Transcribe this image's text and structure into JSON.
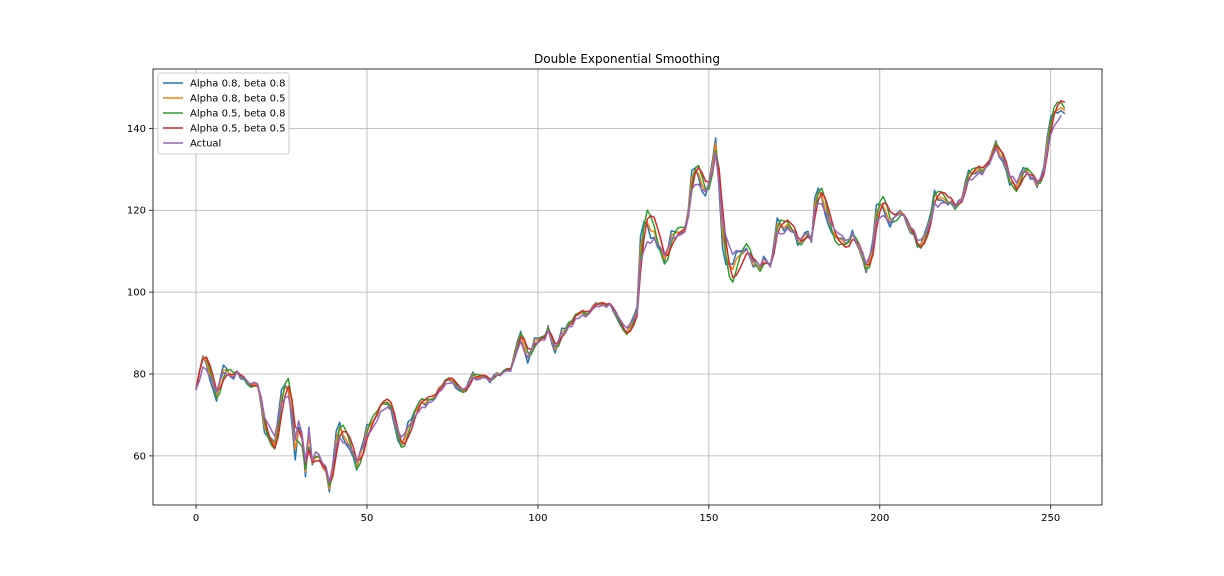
{
  "chart_data": {
    "type": "line",
    "title": "Double Exponential Smoothing",
    "xlabel": "",
    "ylabel": "",
    "xlim": [
      -12.6,
      265
    ],
    "ylim": [
      48,
      154.5
    ],
    "xticks": [
      0,
      50,
      100,
      150,
      200,
      250
    ],
    "yticks": [
      60,
      80,
      100,
      120,
      140
    ],
    "grid": true,
    "legend_position": "upper-left",
    "anchors": [
      [
        0,
        76
      ],
      [
        2,
        81.5
      ],
      [
        4,
        79
      ],
      [
        6,
        76
      ],
      [
        8,
        80
      ],
      [
        10,
        79
      ],
      [
        12,
        80
      ],
      [
        14,
        79
      ],
      [
        16,
        78
      ],
      [
        18,
        77
      ],
      [
        20,
        70
      ],
      [
        22,
        66
      ],
      [
        23,
        65
      ],
      [
        25,
        73
      ],
      [
        27,
        74
      ],
      [
        28,
        70
      ],
      [
        29,
        64
      ],
      [
        30,
        68
      ],
      [
        31,
        66
      ],
      [
        32,
        59
      ],
      [
        33,
        67
      ],
      [
        34,
        59
      ],
      [
        35,
        61
      ],
      [
        36,
        59.5
      ],
      [
        38,
        57
      ],
      [
        39,
        54
      ],
      [
        41,
        62
      ],
      [
        42,
        64
      ],
      [
        44,
        63
      ],
      [
        46,
        60.5
      ],
      [
        47,
        59
      ],
      [
        49,
        63
      ],
      [
        50,
        65
      ],
      [
        52,
        67
      ],
      [
        54,
        71
      ],
      [
        56,
        72
      ],
      [
        58,
        69
      ],
      [
        60,
        65
      ],
      [
        62,
        67
      ],
      [
        64,
        70
      ],
      [
        66,
        72
      ],
      [
        68,
        72.5
      ],
      [
        70,
        74
      ],
      [
        72,
        76
      ],
      [
        74,
        78.5
      ],
      [
        76,
        77
      ],
      [
        78,
        76
      ],
      [
        80,
        78
      ],
      [
        82,
        79
      ],
      [
        84,
        78.5
      ],
      [
        86,
        79
      ],
      [
        88,
        79.5
      ],
      [
        90,
        80
      ],
      [
        92,
        81
      ],
      [
        94,
        85
      ],
      [
        95,
        88
      ],
      [
        97,
        84
      ],
      [
        99,
        87
      ],
      [
        101,
        88
      ],
      [
        103,
        90
      ],
      [
        105,
        87
      ],
      [
        107,
        89.5
      ],
      [
        109,
        91
      ],
      [
        111,
        93
      ],
      [
        113,
        94.5
      ],
      [
        115,
        95
      ],
      [
        117,
        96
      ],
      [
        119,
        96
      ],
      [
        121,
        96.5
      ],
      [
        123,
        95.5
      ],
      [
        125,
        92
      ],
      [
        126,
        91
      ],
      [
        128,
        93
      ],
      [
        129,
        95
      ],
      [
        130,
        107
      ],
      [
        132,
        112
      ],
      [
        134,
        113
      ],
      [
        135,
        112
      ],
      [
        137,
        109
      ],
      [
        139,
        113
      ],
      [
        141,
        114
      ],
      [
        143,
        115
      ],
      [
        144,
        119
      ],
      [
        145,
        125
      ],
      [
        147,
        126
      ],
      [
        149,
        124
      ],
      [
        150,
        126
      ],
      [
        151,
        130
      ],
      [
        152,
        134
      ],
      [
        153,
        126
      ],
      [
        154,
        118
      ],
      [
        155,
        113
      ],
      [
        157,
        110
      ],
      [
        159,
        110
      ],
      [
        161,
        111
      ],
      [
        163,
        108
      ],
      [
        165,
        106
      ],
      [
        166,
        108
      ],
      [
        168,
        107
      ],
      [
        170,
        114
      ],
      [
        172,
        115
      ],
      [
        174,
        115
      ],
      [
        176,
        113
      ],
      [
        178,
        114
      ],
      [
        180,
        113
      ],
      [
        181,
        120
      ],
      [
        182,
        122
      ],
      [
        184,
        120
      ],
      [
        186,
        116
      ],
      [
        188,
        114
      ],
      [
        190,
        113
      ],
      [
        192,
        114
      ],
      [
        194,
        112
      ],
      [
        196,
        107
      ],
      [
        198,
        111
      ],
      [
        199,
        117
      ],
      [
        201,
        119
      ],
      [
        203,
        117
      ],
      [
        205,
        119
      ],
      [
        207,
        118
      ],
      [
        209,
        116
      ],
      [
        211,
        113
      ],
      [
        213,
        114
      ],
      [
        215,
        117
      ],
      [
        216,
        121
      ],
      [
        218,
        122
      ],
      [
        220,
        122
      ],
      [
        222,
        121
      ],
      [
        224,
        122
      ],
      [
        226,
        127
      ],
      [
        228,
        128
      ],
      [
        230,
        129
      ],
      [
        232,
        131
      ],
      [
        234,
        135
      ],
      [
        236,
        132
      ],
      [
        238,
        129
      ],
      [
        240,
        127
      ],
      [
        242,
        129
      ],
      [
        244,
        128
      ],
      [
        246,
        127
      ],
      [
        248,
        130
      ],
      [
        250,
        138
      ],
      [
        251,
        141
      ],
      [
        252,
        142
      ],
      [
        253,
        142.5
      ]
    ],
    "x_count": 254,
    "series": [
      {
        "name": "Alpha 0.8, beta 0.8",
        "color": "#1f77b4",
        "alpha": 0.8,
        "beta": 0.8
      },
      {
        "name": "Alpha 0.8, beta 0.5",
        "color": "#ff7f0e",
        "alpha": 0.8,
        "beta": 0.5
      },
      {
        "name": "Alpha 0.5, beta 0.8",
        "color": "#2ca02c",
        "alpha": 0.5,
        "beta": 0.8
      },
      {
        "name": "Alpha 0.5, beta 0.5",
        "color": "#d62728",
        "alpha": 0.5,
        "beta": 0.5
      },
      {
        "name": "Actual",
        "color": "#9467bd"
      }
    ]
  }
}
